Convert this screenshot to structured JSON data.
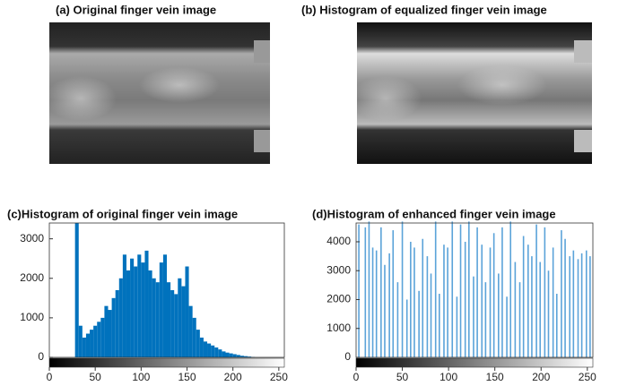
{
  "chart_data": [
    {
      "type": "image",
      "title": "(a) Original finger vein image"
    },
    {
      "type": "image",
      "title": "(b) Histogram of equalized finger vein image"
    },
    {
      "type": "histogram",
      "title": "(c)Histogram of original finger vein image",
      "color": "#0072bd",
      "bins": [
        0,
        4,
        8,
        12,
        16,
        20,
        24,
        28,
        32,
        36,
        40,
        44,
        48,
        52,
        56,
        60,
        64,
        68,
        72,
        76,
        80,
        84,
        88,
        92,
        96,
        100,
        104,
        108,
        112,
        116,
        120,
        124,
        128,
        132,
        136,
        140,
        144,
        148,
        152,
        156,
        160,
        164,
        168,
        172,
        176,
        180,
        184,
        188,
        192,
        196,
        200,
        204,
        208,
        212,
        216,
        220,
        224,
        228,
        232,
        236,
        240,
        244,
        248,
        252,
        256
      ],
      "values": [
        0,
        0,
        0,
        0,
        0,
        0,
        0,
        3400,
        800,
        500,
        600,
        700,
        800,
        900,
        1000,
        1300,
        1200,
        1500,
        1700,
        2000,
        2600,
        2200,
        2500,
        2300,
        2600,
        2400,
        2700,
        2200,
        2000,
        1900,
        2400,
        2600,
        1900,
        1700,
        1600,
        2000,
        1800,
        2300,
        1300,
        1000,
        700,
        500,
        400,
        350,
        300,
        250,
        200,
        150,
        120,
        100,
        80,
        60,
        40,
        30,
        20,
        10,
        0,
        0,
        0,
        0,
        0,
        0,
        0,
        0
      ],
      "xlim": [
        0,
        256
      ],
      "xticks": [
        0,
        50,
        100,
        150,
        200,
        250
      ],
      "ylim": [
        0,
        3400
      ],
      "yticks": [
        0,
        1000,
        2000,
        3000
      ]
    },
    {
      "type": "bar",
      "title": "(d)Histogram  of enhanced finger vein image",
      "color": "#5ba3d9",
      "x": [
        3,
        10,
        14,
        18,
        22,
        27,
        31,
        36,
        40,
        45,
        50,
        55,
        59,
        63,
        68,
        72,
        77,
        81,
        86,
        90,
        95,
        99,
        104,
        109,
        113,
        118,
        122,
        127,
        131,
        136,
        140,
        145,
        149,
        154,
        158,
        163,
        167,
        172,
        177,
        181,
        186,
        190,
        195,
        199,
        204,
        208,
        213,
        217,
        222,
        226,
        231,
        235,
        240,
        244,
        249,
        253
      ],
      "values": [
        4600,
        4500,
        4700,
        3800,
        3700,
        4500,
        3200,
        3600,
        4400,
        2600,
        4700,
        2000,
        4000,
        3800,
        2300,
        4100,
        3500,
        2900,
        4700,
        2200,
        3900,
        3800,
        4700,
        2100,
        4600,
        4000,
        4700,
        2800,
        4500,
        3900,
        2600,
        3800,
        4300,
        2900,
        4500,
        2100,
        4700,
        3300,
        2600,
        4200,
        3900,
        3500,
        4600,
        3300,
        4500,
        3000,
        3800,
        2200,
        4400,
        4100,
        3500,
        3700,
        3400,
        3600,
        3700,
        3500
      ],
      "xlim": [
        0,
        256
      ],
      "xticks": [
        0,
        50,
        100,
        150,
        200,
        250
      ],
      "ylim": [
        0,
        4650
      ],
      "yticks": [
        0,
        1000,
        2000,
        3000,
        4000
      ]
    }
  ]
}
